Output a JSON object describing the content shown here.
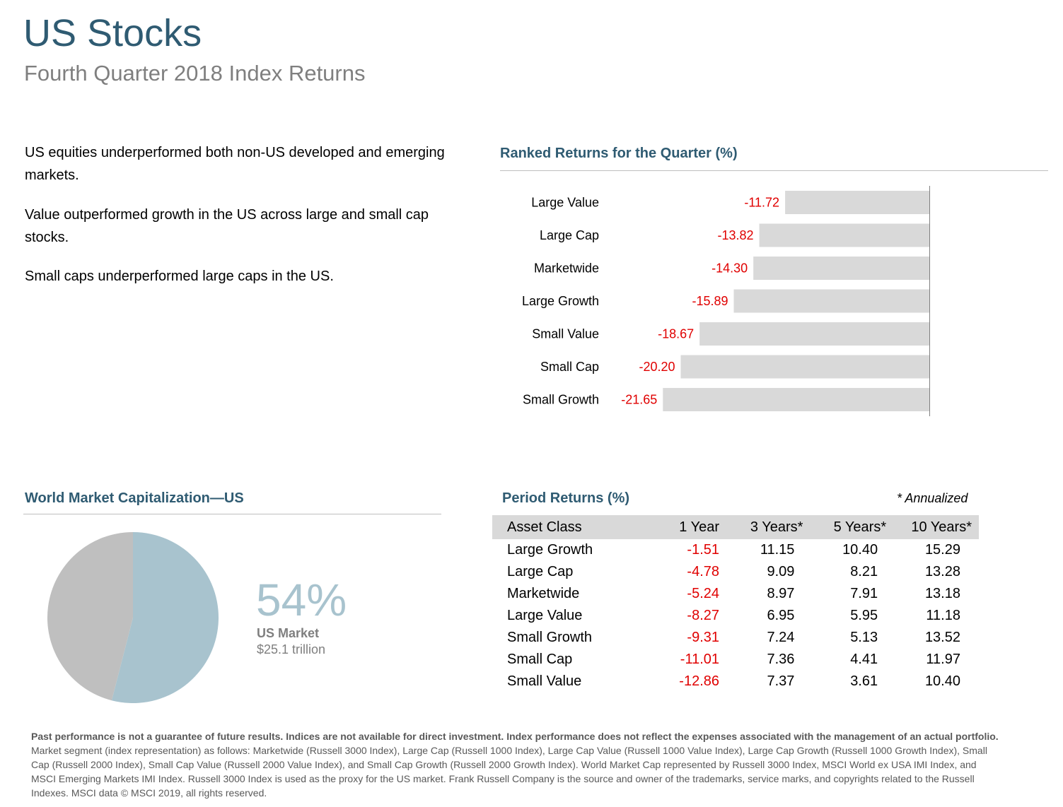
{
  "header": {
    "title": "US Stocks",
    "subtitle": "Fourth Quarter 2018 Index Returns"
  },
  "bullets": [
    "US equities underperformed both non-US developed and emerging markets.",
    "Value outperformed growth in the US across large and small cap stocks.",
    "Small caps underperformed large caps in the US."
  ],
  "ranked": {
    "heading": "Ranked Returns for the Quarter (%)"
  },
  "chart_data": [
    {
      "type": "bar",
      "orientation": "horizontal",
      "title": "Ranked Returns for the Quarter (%)",
      "categories": [
        "Large Value",
        "Large Cap",
        "Marketwide",
        "Large Growth",
        "Small Value",
        "Small Cap",
        "Small Growth"
      ],
      "values": [
        -11.72,
        -13.82,
        -14.3,
        -15.89,
        -18.67,
        -20.2,
        -21.65
      ],
      "value_labels": [
        "-11.72",
        "-13.82",
        "-14.30",
        "-15.89",
        "-18.67",
        "-20.20",
        "-21.65"
      ],
      "bar_color": "#d9d9d9",
      "label_color": "#e00000",
      "grid": false
    },
    {
      "type": "pie",
      "title": "World Market Capitalization—US",
      "slices": [
        {
          "label": "US Market",
          "value": 54,
          "color": "#a8c3ce"
        },
        {
          "label": "",
          "value": 46,
          "color": "#bfbfbf"
        }
      ]
    },
    {
      "type": "table",
      "title": "Period Returns (%)",
      "columns": [
        "Asset Class",
        "1 Year",
        "3 Years*",
        "5 Years*",
        "10 Years*"
      ],
      "rows": [
        [
          "Large Growth",
          "-1.51",
          "11.15",
          "10.40",
          "15.29"
        ],
        [
          "Large Cap",
          "-4.78",
          "9.09",
          "8.21",
          "13.28"
        ],
        [
          "Marketwide",
          "-5.24",
          "8.97",
          "7.91",
          "13.18"
        ],
        [
          "Large Value",
          "-8.27",
          "6.95",
          "5.95",
          "11.18"
        ],
        [
          "Small Growth",
          "-9.31",
          "7.24",
          "5.13",
          "13.52"
        ],
        [
          "Small Cap",
          "-11.01",
          "7.36",
          "4.41",
          "11.97"
        ],
        [
          "Small Value",
          "-12.86",
          "7.37",
          "3.61",
          "10.40"
        ]
      ]
    }
  ],
  "world_cap": {
    "heading": "World Market Capitalization—US",
    "percent": "54%",
    "label": "US Market",
    "value": "$25.1 trillion"
  },
  "period": {
    "heading": "Period Returns (%)",
    "note": "* Annualized"
  },
  "footer": {
    "bold": "Past performance is not a guarantee of future results. Indices are not available for direct investment. Index performance does not reflect the expenses associated with the management of an actual portfolio.",
    "text": "Market segment (index representation) as follows: Marketwide (Russell 3000 Index), Large Cap (Russell 1000 Index), Large Cap Value (Russell 1000 Value Index), Large Cap Growth (Russell 1000 Growth Index), Small Cap (Russell 2000 Index), Small Cap Value (Russell 2000 Value Index), and Small Cap Growth (Russell 2000 Growth Index). World Market Cap represented by Russell 3000 Index, MSCI World ex USA IMI Index, and MSCI Emerging Markets IMI Index. Russell 3000 Index is used as the proxy for the US market. Frank Russell Company is the source and owner of the trademarks, service marks, and copyrights related to the Russell Indexes. MSCI data © MSCI 2019, all rights reserved."
  }
}
